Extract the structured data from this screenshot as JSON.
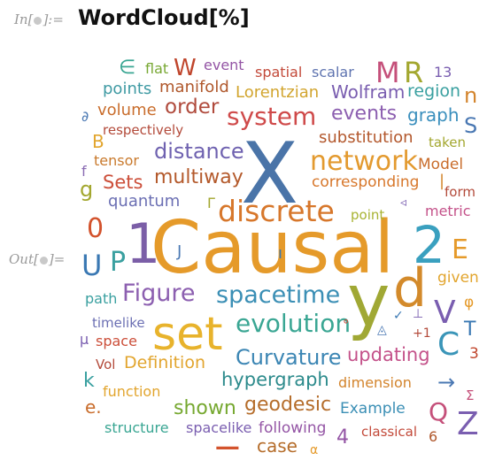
{
  "input_label": {
    "prefix": "In[",
    "suffix": "]:="
  },
  "output_label": {
    "prefix": "Out[",
    "suffix": "]="
  },
  "input_code": "WordCloud[%]",
  "words": [
    {
      "text": "Causal",
      "color": "#e59a2a"
    },
    {
      "text": "X",
      "color": "#4a74a8"
    },
    {
      "text": "y",
      "color": "#a0a834"
    },
    {
      "text": "d",
      "color": "#d38a2b"
    },
    {
      "text": "1",
      "color": "#7b5ea7"
    },
    {
      "text": "2",
      "color": "#3aa0bf"
    },
    {
      "text": "set",
      "color": "#e8b32c"
    },
    {
      "text": "discrete",
      "color": "#d7772b"
    },
    {
      "text": "network",
      "color": "#e39a2f"
    },
    {
      "text": "Figure",
      "color": "#8c5fb0"
    },
    {
      "text": "spacetime",
      "color": "#3b8fb5"
    },
    {
      "text": "evolution",
      "color": "#3aa693"
    },
    {
      "text": "system",
      "color": "#cf4a4a"
    },
    {
      "text": "distance",
      "color": "#6f62b0"
    },
    {
      "text": "multiway",
      "color": "#b45a2c"
    },
    {
      "text": "Curvature",
      "color": "#3c86b4"
    },
    {
      "text": "hypergraph",
      "color": "#2d8b8c"
    },
    {
      "text": "geodesic",
      "color": "#b56d2b"
    },
    {
      "text": "shown",
      "color": "#76a830"
    },
    {
      "text": "updating",
      "color": "#c4528a"
    },
    {
      "text": "dimension",
      "color": "#d3842c"
    },
    {
      "text": "Definition",
      "color": "#e2a52e"
    },
    {
      "text": "events",
      "color": "#8c5fb0"
    },
    {
      "text": "graph",
      "color": "#3a8fbd"
    },
    {
      "text": "order",
      "color": "#b04a3c"
    },
    {
      "text": "substitution",
      "color": "#b3582d"
    },
    {
      "text": "corresponding",
      "color": "#d7772b"
    },
    {
      "text": "Sets",
      "color": "#cc4f3a"
    },
    {
      "text": "quantum",
      "color": "#6b6fb3"
    },
    {
      "text": "tensor",
      "color": "#c97a2d"
    },
    {
      "text": "volume",
      "color": "#c96d2c"
    },
    {
      "text": "respectively",
      "color": "#b34a3a"
    },
    {
      "text": "points",
      "color": "#3f9aa3"
    },
    {
      "text": "manifold",
      "color": "#b0582c"
    },
    {
      "text": "Lorentzian",
      "color": "#d2a52f"
    },
    {
      "text": "Wolfram",
      "color": "#7a5eb0"
    },
    {
      "text": "region",
      "color": "#3aa0a0"
    },
    {
      "text": "spatial",
      "color": "#c34a3a"
    },
    {
      "text": "scalar",
      "color": "#5f74b0"
    },
    {
      "text": "event",
      "color": "#9455a5"
    },
    {
      "text": "flat",
      "color": "#78a833"
    },
    {
      "text": "W",
      "color": "#c0462d"
    },
    {
      "text": "M",
      "color": "#c5507a"
    },
    {
      "text": "R",
      "color": "#a3a72f"
    },
    {
      "text": "13",
      "color": "#7a5eb0"
    },
    {
      "text": "n",
      "color": "#d3842c"
    },
    {
      "text": "S",
      "color": "#4a78b3"
    },
    {
      "text": "taken",
      "color": "#a3a72f"
    },
    {
      "text": "Model",
      "color": "#c96d2c"
    },
    {
      "text": "form",
      "color": "#b34a3a"
    },
    {
      "text": "metric",
      "color": "#c4528a"
    },
    {
      "text": "point",
      "color": "#a8b333"
    },
    {
      "text": "E",
      "color": "#e59a2a"
    },
    {
      "text": "given",
      "color": "#e2a52e"
    },
    {
      "text": "V",
      "color": "#7a5eb0"
    },
    {
      "text": "C",
      "color": "#3a95b8"
    },
    {
      "text": "T",
      "color": "#3a78b3"
    },
    {
      "text": "3",
      "color": "#c0462d"
    },
    {
      "text": "Q",
      "color": "#c5507a"
    },
    {
      "text": "Z",
      "color": "#7a5eb0"
    },
    {
      "text": "6",
      "color": "#b0582c"
    },
    {
      "text": "Σ",
      "color": "#c5507a"
    },
    {
      "text": "Example",
      "color": "#3b8fb5"
    },
    {
      "text": "classical",
      "color": "#c34a3a"
    },
    {
      "text": "4",
      "color": "#9455a5"
    },
    {
      "text": "case",
      "color": "#b56d2b"
    },
    {
      "text": "following",
      "color": "#9455a5"
    },
    {
      "text": "spacelike",
      "color": "#7a5eb0"
    },
    {
      "text": "structure",
      "color": "#3aa693"
    },
    {
      "text": "α",
      "color": "#e59a2a"
    },
    {
      "text": "function",
      "color": "#e2a52e"
    },
    {
      "text": "e.",
      "color": "#c96d2c"
    },
    {
      "text": "k",
      "color": "#3aa0a0"
    },
    {
      "text": "Vol",
      "color": "#b34a3a"
    },
    {
      "text": "μ",
      "color": "#7a5eb0"
    },
    {
      "text": "space",
      "color": "#cc4f3a"
    },
    {
      "text": "timelike",
      "color": "#6b6fb3"
    },
    {
      "text": "path",
      "color": "#3aa0a0"
    },
    {
      "text": "U",
      "color": "#3a78b3"
    },
    {
      "text": "P",
      "color": "#3aa0a0"
    },
    {
      "text": "0",
      "color": "#d3532d"
    },
    {
      "text": "J",
      "color": "#4a78b3"
    },
    {
      "text": "Γ",
      "color": "#a3a72f"
    },
    {
      "text": "g",
      "color": "#a3a72f"
    },
    {
      "text": "f",
      "color": "#8a6bb3"
    },
    {
      "text": "B",
      "color": "#e2a52e"
    },
    {
      "text": "∂",
      "color": "#4a78b3"
    },
    {
      "text": "∈",
      "color": "#3aa693"
    },
    {
      "text": "φ",
      "color": "#e59a2a"
    },
    {
      "text": "+1",
      "color": "#b34a3a"
    },
    {
      "text": "|",
      "color": "#d3842c"
    },
    {
      "text": "ı",
      "color": "#3a78b3"
    },
    {
      "text": "→",
      "color": "#4a78b3"
    },
    {
      "text": "−",
      "color": "#d3532d"
    },
    {
      "text": "◬",
      "color": "#4a78b3"
    },
    {
      "text": "∘",
      "color": "#c34a3a"
    },
    {
      "text": "◃",
      "color": "#7a5eb0"
    },
    {
      "text": "⊥",
      "color": "#7a5eb0"
    },
    {
      "text": "✓",
      "color": "#3a78b3"
    }
  ]
}
